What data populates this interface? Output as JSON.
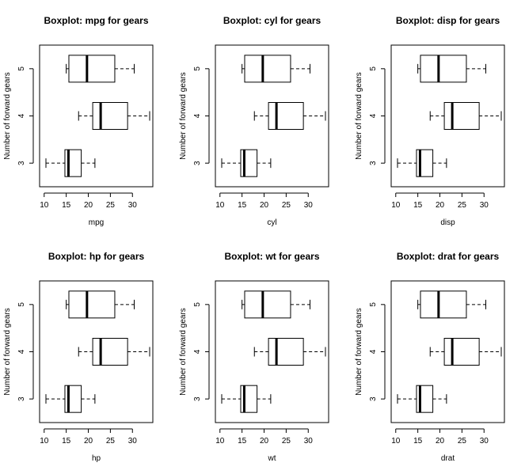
{
  "chart_data": [
    {
      "type": "boxplot",
      "orientation": "horizontal",
      "title": "Boxplot:  mpg for gears",
      "xlabel": "mpg",
      "ylabel": "Number of forward gears",
      "xticks": [
        10,
        15,
        20,
        25,
        30
      ],
      "yticks": [
        "3",
        "4",
        "5"
      ],
      "xlim": [
        10.4,
        33.9
      ],
      "frame": true,
      "grid": false,
      "series": [
        {
          "category": "3",
          "whisker_low": 10.4,
          "q1": 14.7,
          "median": 15.5,
          "q3": 18.4,
          "whisker_high": 21.5
        },
        {
          "category": "4",
          "whisker_low": 17.8,
          "q1": 21.0,
          "median": 22.8,
          "q3": 28.9,
          "whisker_high": 33.9
        },
        {
          "category": "5",
          "whisker_low": 15.0,
          "q1": 15.6,
          "median": 19.7,
          "q3": 26.0,
          "whisker_high": 30.4
        }
      ]
    },
    {
      "type": "boxplot",
      "orientation": "horizontal",
      "title": "Boxplot:  cyl for gears",
      "xlabel": "cyl",
      "ylabel": "Number of forward gears",
      "xticks": [
        10,
        15,
        20,
        25,
        30
      ],
      "yticks": [
        "3",
        "4",
        "5"
      ],
      "xlim": [
        10.4,
        33.9
      ],
      "frame": true,
      "grid": false,
      "series": [
        {
          "category": "3",
          "whisker_low": 10.4,
          "q1": 14.7,
          "median": 15.5,
          "q3": 18.4,
          "whisker_high": 21.5
        },
        {
          "category": "4",
          "whisker_low": 17.8,
          "q1": 21.0,
          "median": 22.8,
          "q3": 28.9,
          "whisker_high": 33.9
        },
        {
          "category": "5",
          "whisker_low": 15.0,
          "q1": 15.6,
          "median": 19.7,
          "q3": 26.0,
          "whisker_high": 30.4
        }
      ]
    },
    {
      "type": "boxplot",
      "orientation": "horizontal",
      "title": "Boxplot:  disp for gears",
      "xlabel": "disp",
      "ylabel": "Number of forward gears",
      "xticks": [
        10,
        15,
        20,
        25,
        30
      ],
      "yticks": [
        "3",
        "4",
        "5"
      ],
      "xlim": [
        10.4,
        33.9
      ],
      "frame": true,
      "grid": false,
      "series": [
        {
          "category": "3",
          "whisker_low": 10.4,
          "q1": 14.7,
          "median": 15.5,
          "q3": 18.4,
          "whisker_high": 21.5
        },
        {
          "category": "4",
          "whisker_low": 17.8,
          "q1": 21.0,
          "median": 22.8,
          "q3": 28.9,
          "whisker_high": 33.9
        },
        {
          "category": "5",
          "whisker_low": 15.0,
          "q1": 15.6,
          "median": 19.7,
          "q3": 26.0,
          "whisker_high": 30.4
        }
      ]
    },
    {
      "type": "boxplot",
      "orientation": "horizontal",
      "title": "Boxplot:  hp for gears",
      "xlabel": "hp",
      "ylabel": "Number of forward gears",
      "xticks": [
        10,
        15,
        20,
        25,
        30
      ],
      "yticks": [
        "3",
        "4",
        "5"
      ],
      "xlim": [
        10.4,
        33.9
      ],
      "frame": true,
      "grid": false,
      "series": [
        {
          "category": "3",
          "whisker_low": 10.4,
          "q1": 14.7,
          "median": 15.5,
          "q3": 18.4,
          "whisker_high": 21.5
        },
        {
          "category": "4",
          "whisker_low": 17.8,
          "q1": 21.0,
          "median": 22.8,
          "q3": 28.9,
          "whisker_high": 33.9
        },
        {
          "category": "5",
          "whisker_low": 15.0,
          "q1": 15.6,
          "median": 19.7,
          "q3": 26.0,
          "whisker_high": 30.4
        }
      ]
    },
    {
      "type": "boxplot",
      "orientation": "horizontal",
      "title": "Boxplot:  wt for gears",
      "xlabel": "wt",
      "ylabel": "Number of forward gears",
      "xticks": [
        10,
        15,
        20,
        25,
        30
      ],
      "yticks": [
        "3",
        "4",
        "5"
      ],
      "xlim": [
        10.4,
        33.9
      ],
      "frame": true,
      "grid": false,
      "series": [
        {
          "category": "3",
          "whisker_low": 10.4,
          "q1": 14.7,
          "median": 15.5,
          "q3": 18.4,
          "whisker_high": 21.5
        },
        {
          "category": "4",
          "whisker_low": 17.8,
          "q1": 21.0,
          "median": 22.8,
          "q3": 28.9,
          "whisker_high": 33.9
        },
        {
          "category": "5",
          "whisker_low": 15.0,
          "q1": 15.6,
          "median": 19.7,
          "q3": 26.0,
          "whisker_high": 30.4
        }
      ]
    },
    {
      "type": "boxplot",
      "orientation": "horizontal",
      "title": "Boxplot:  drat for gears",
      "xlabel": "drat",
      "ylabel": "Number of forward gears",
      "xticks": [
        10,
        15,
        20,
        25,
        30
      ],
      "yticks": [
        "3",
        "4",
        "5"
      ],
      "xlim": [
        10.4,
        33.9
      ],
      "frame": true,
      "grid": false,
      "series": [
        {
          "category": "3",
          "whisker_low": 10.4,
          "q1": 14.7,
          "median": 15.5,
          "q3": 18.4,
          "whisker_high": 21.5
        },
        {
          "category": "4",
          "whisker_low": 17.8,
          "q1": 21.0,
          "median": 22.8,
          "q3": 28.9,
          "whisker_high": 33.9
        },
        {
          "category": "5",
          "whisker_low": 15.0,
          "q1": 15.6,
          "median": 19.7,
          "q3": 26.0,
          "whisker_high": 30.4
        }
      ]
    }
  ]
}
